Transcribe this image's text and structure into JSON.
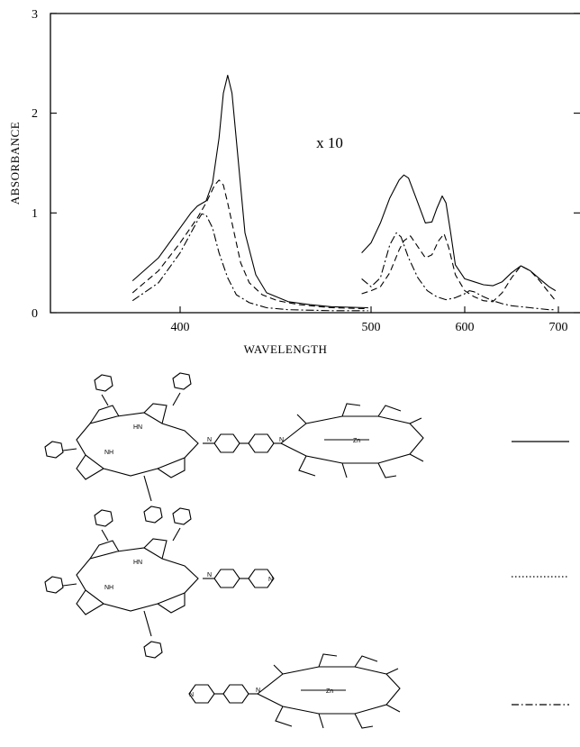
{
  "chart_data": {
    "type": "line",
    "xlabel": "WAVELENGTH",
    "ylabel": "ABSORBANCE",
    "xlim": [
      340,
      750
    ],
    "ylim": [
      0,
      3
    ],
    "xticks": [
      "400",
      "500",
      "600",
      "700"
    ],
    "yticks": [
      "0",
      "1",
      "2",
      "3"
    ],
    "annotation": "x 10",
    "grid": false,
    "series": [
      {
        "line_style": "solid",
        "segments": [
          {
            "x": [
              378,
              390,
              400,
              405,
              408,
              412,
              415,
              418,
              420,
              422,
              424,
              427,
              430,
              435,
              440,
              450,
              460,
              470,
              487
            ],
            "y": [
              0.32,
              0.55,
              0.85,
              1.0,
              1.07,
              1.12,
              1.3,
              1.75,
              2.2,
              2.38,
              2.2,
              1.5,
              0.8,
              0.38,
              0.2,
              0.11,
              0.08,
              0.06,
              0.05
            ]
          },
          {
            "x": [
              490,
              500,
              510,
              520,
              530,
              535,
              540,
              550,
              558,
              565,
              570,
              576,
              580,
              585,
              590,
              600,
              610,
              620,
              630,
              640,
              650,
              660,
              670,
              680,
              690,
              697
            ],
            "y": [
              0.6,
              0.7,
              0.9,
              1.15,
              1.33,
              1.38,
              1.35,
              1.1,
              0.9,
              0.91,
              1.04,
              1.17,
              1.1,
              0.8,
              0.48,
              0.34,
              0.31,
              0.28,
              0.27,
              0.31,
              0.4,
              0.47,
              0.42,
              0.34,
              0.26,
              0.22
            ]
          }
        ]
      },
      {
        "line_style": "dashed",
        "segments": [
          {
            "x": [
              378,
              390,
              400,
              408,
              412,
              416,
              418,
              420,
              422,
              425,
              428,
              432,
              438,
              445,
              455,
              470,
              487
            ],
            "y": [
              0.2,
              0.42,
              0.7,
              0.95,
              1.1,
              1.28,
              1.33,
              1.28,
              1.1,
              0.8,
              0.5,
              0.3,
              0.18,
              0.12,
              0.08,
              0.05,
              0.04
            ]
          },
          {
            "x": [
              490,
              500,
              510,
              520,
              530,
              535,
              542,
              550,
              558,
              565,
              572,
              578,
              583,
              590,
              600,
              610,
              620,
              630,
              640,
              650,
              660,
              670,
              680,
              690,
              697
            ],
            "y": [
              0.19,
              0.22,
              0.26,
              0.4,
              0.63,
              0.72,
              0.77,
              0.66,
              0.55,
              0.58,
              0.72,
              0.79,
              0.65,
              0.38,
              0.22,
              0.16,
              0.12,
              0.11,
              0.2,
              0.35,
              0.47,
              0.42,
              0.32,
              0.2,
              0.12
            ]
          }
        ]
      },
      {
        "line_style": "dash-dot",
        "segments": [
          {
            "x": [
              378,
              390,
              400,
              405,
              408,
              410,
              412,
              415,
              418,
              422,
              426,
              432,
              440,
              450,
              470,
              487
            ],
            "y": [
              0.12,
              0.3,
              0.6,
              0.8,
              0.92,
              0.99,
              0.98,
              0.85,
              0.6,
              0.35,
              0.18,
              0.1,
              0.05,
              0.03,
              0.02,
              0.02
            ]
          },
          {
            "x": [
              490,
              500,
              510,
              520,
              527,
              532,
              540,
              550,
              560,
              570,
              580,
              590,
              600,
              605,
              610,
              620,
              630,
              640,
              650,
              660,
              670,
              680,
              690,
              697
            ],
            "y": [
              0.34,
              0.26,
              0.35,
              0.68,
              0.8,
              0.76,
              0.55,
              0.35,
              0.22,
              0.16,
              0.13,
              0.15,
              0.19,
              0.22,
              0.21,
              0.16,
              0.12,
              0.09,
              0.07,
              0.06,
              0.05,
              0.04,
              0.03,
              0.03
            ]
          }
        ]
      }
    ]
  }
}
